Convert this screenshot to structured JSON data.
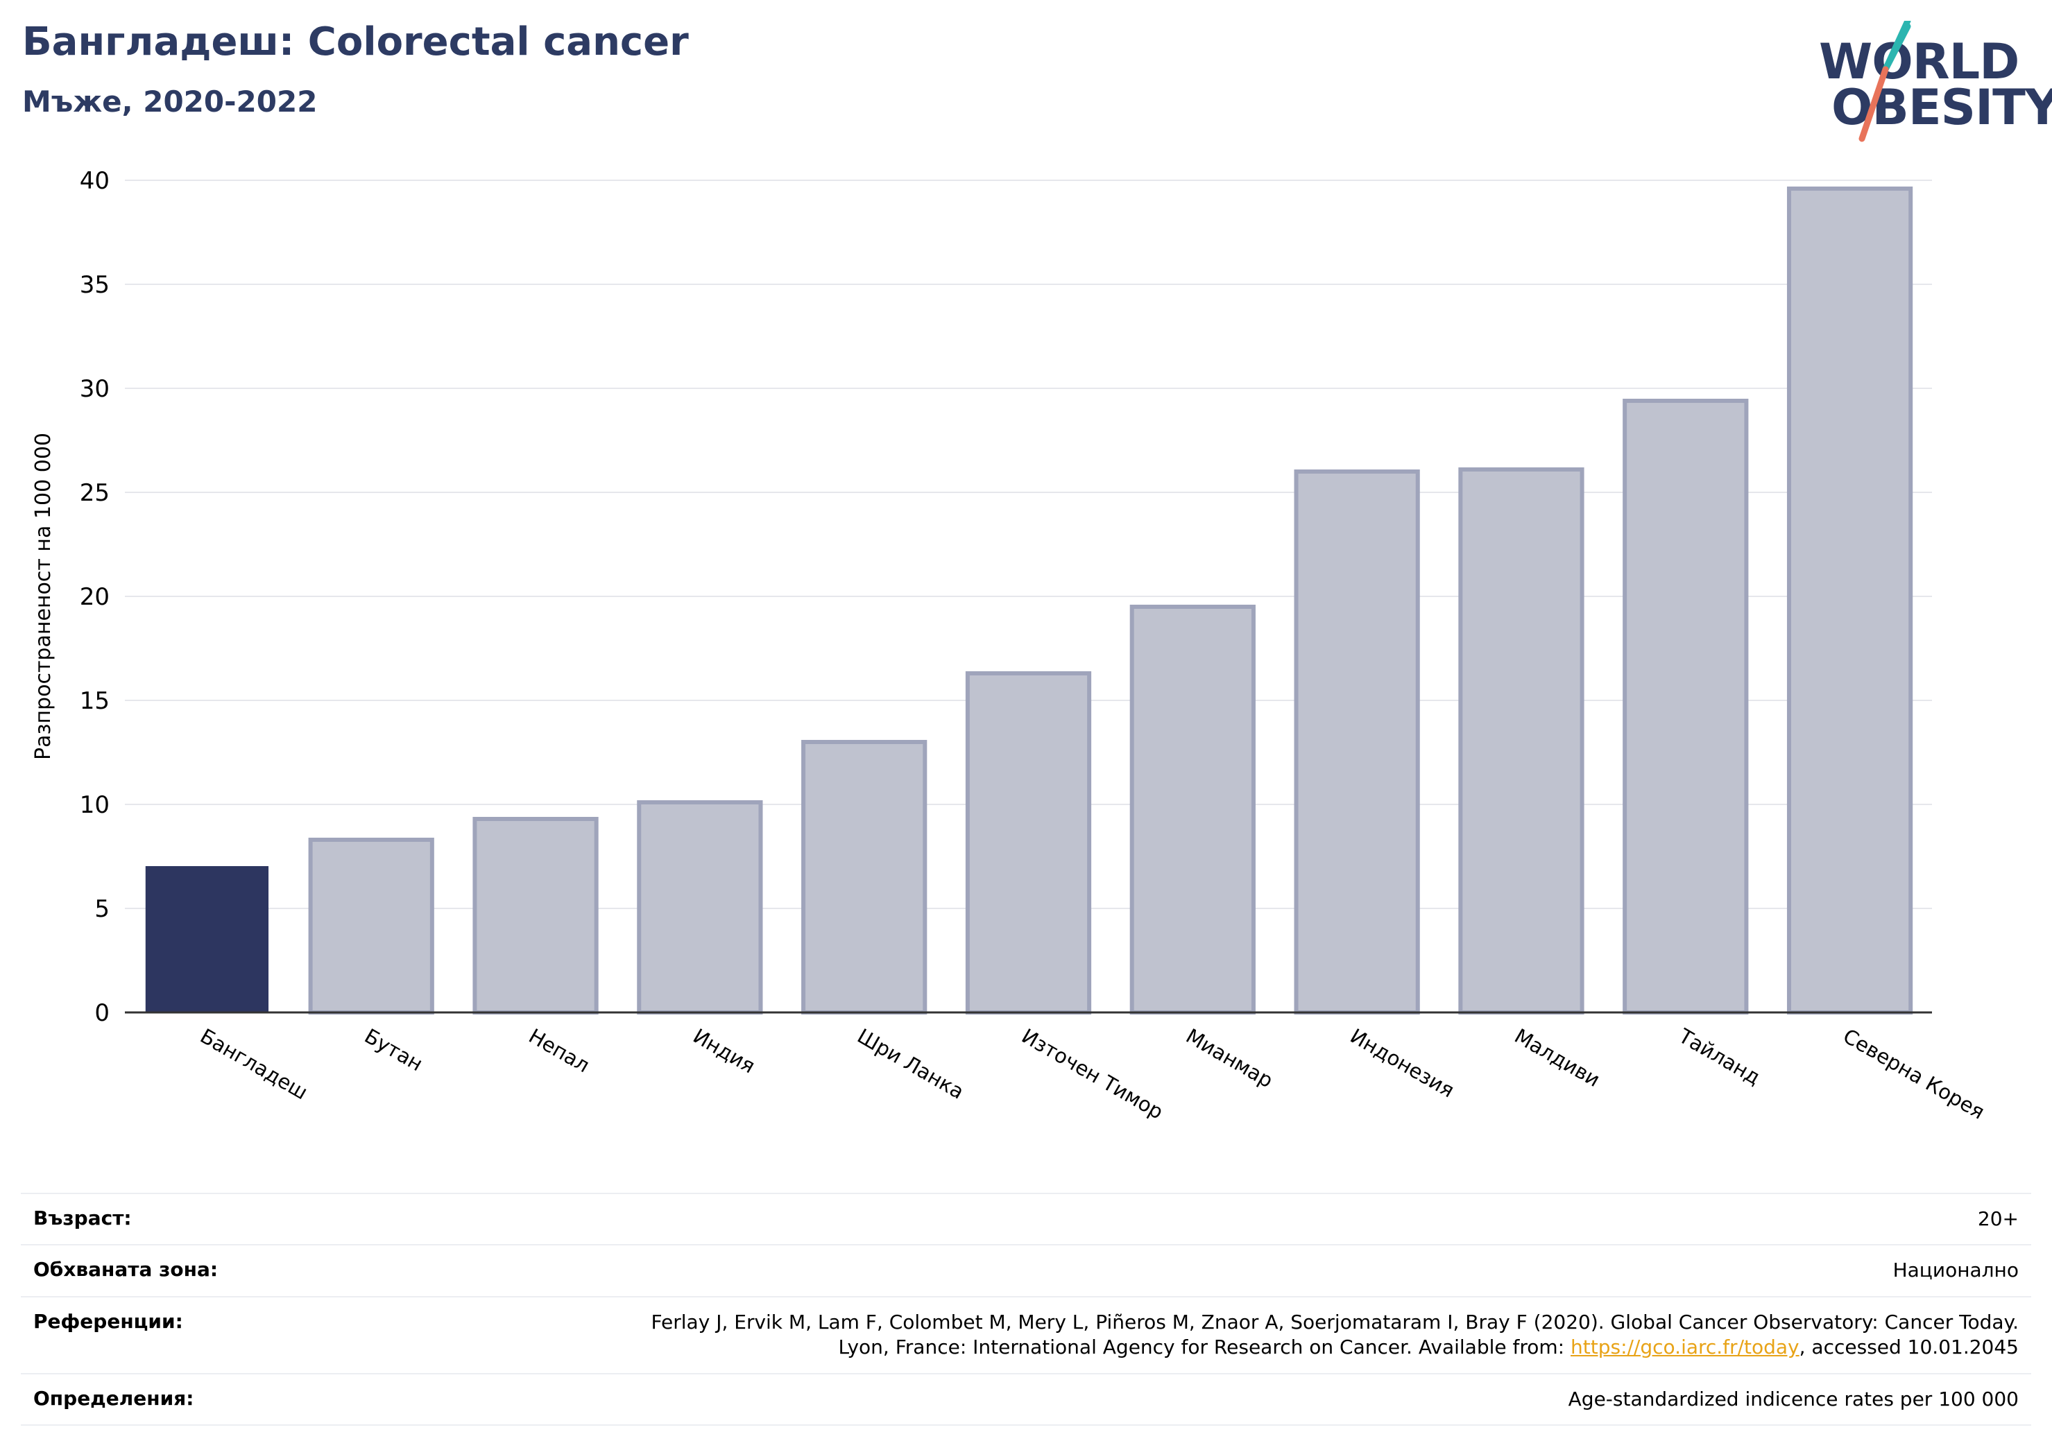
{
  "header": {
    "title": "Бангладеш: Colorectal cancer",
    "subtitle": "Мъже, 2020-2022"
  },
  "logo": {
    "line1": "WORLD",
    "line2": "OBESITY",
    "colors": {
      "navy": "#2d3b63",
      "teal": "#2bb5b0",
      "coral": "#e8735a"
    }
  },
  "colors": {
    "highlight": "#2d3660",
    "bar_fill": "#bfc2cf",
    "bar_stroke": "#9fa4bb",
    "grid": "#e6e7ec",
    "axis": "#333333"
  },
  "chart_data": {
    "type": "bar",
    "categories": [
      "Бангладеш",
      "Бутан",
      "Непал",
      "Индия",
      "Шри Ланка",
      "Източен Тимор",
      "Мианмар",
      "Индонезия",
      "Малдиви",
      "Тайланд",
      "Северна Корея"
    ],
    "values": [
      7.0,
      8.3,
      9.3,
      10.1,
      13.0,
      16.3,
      19.5,
      26.0,
      26.1,
      29.4,
      39.6
    ],
    "highlight_index": 0,
    "title": "Бангладеш: Colorectal cancer",
    "xlabel": "",
    "ylabel": "Разпространеност  на 100 000",
    "ylim": [
      0,
      40
    ],
    "yticks": [
      0,
      5,
      10,
      15,
      20,
      25,
      30,
      35,
      40
    ],
    "grid": true,
    "legend": "none"
  },
  "info": {
    "rows": [
      {
        "label": "Възраст:",
        "value": "20+"
      },
      {
        "label": "Обхваната зона:",
        "value": "Национално"
      },
      {
        "label": "Референции:",
        "value_line1": "Ferlay J, Ervik M, Lam F, Colombet M, Mery L, Piñeros M, Znaor A, Soerjomataram I, Bray F (2020). Global Cancer Observatory: Cancer Today.",
        "value_line2_pre": "Lyon, France: International Agency for Research on Cancer. Available from: ",
        "value_link": "https://gco.iarc.fr/today",
        "value_line2_post": ", accessed 10.01.2045"
      },
      {
        "label": "Определения:",
        "value": "Age-standardized indicence rates per 100 000"
      }
    ]
  }
}
